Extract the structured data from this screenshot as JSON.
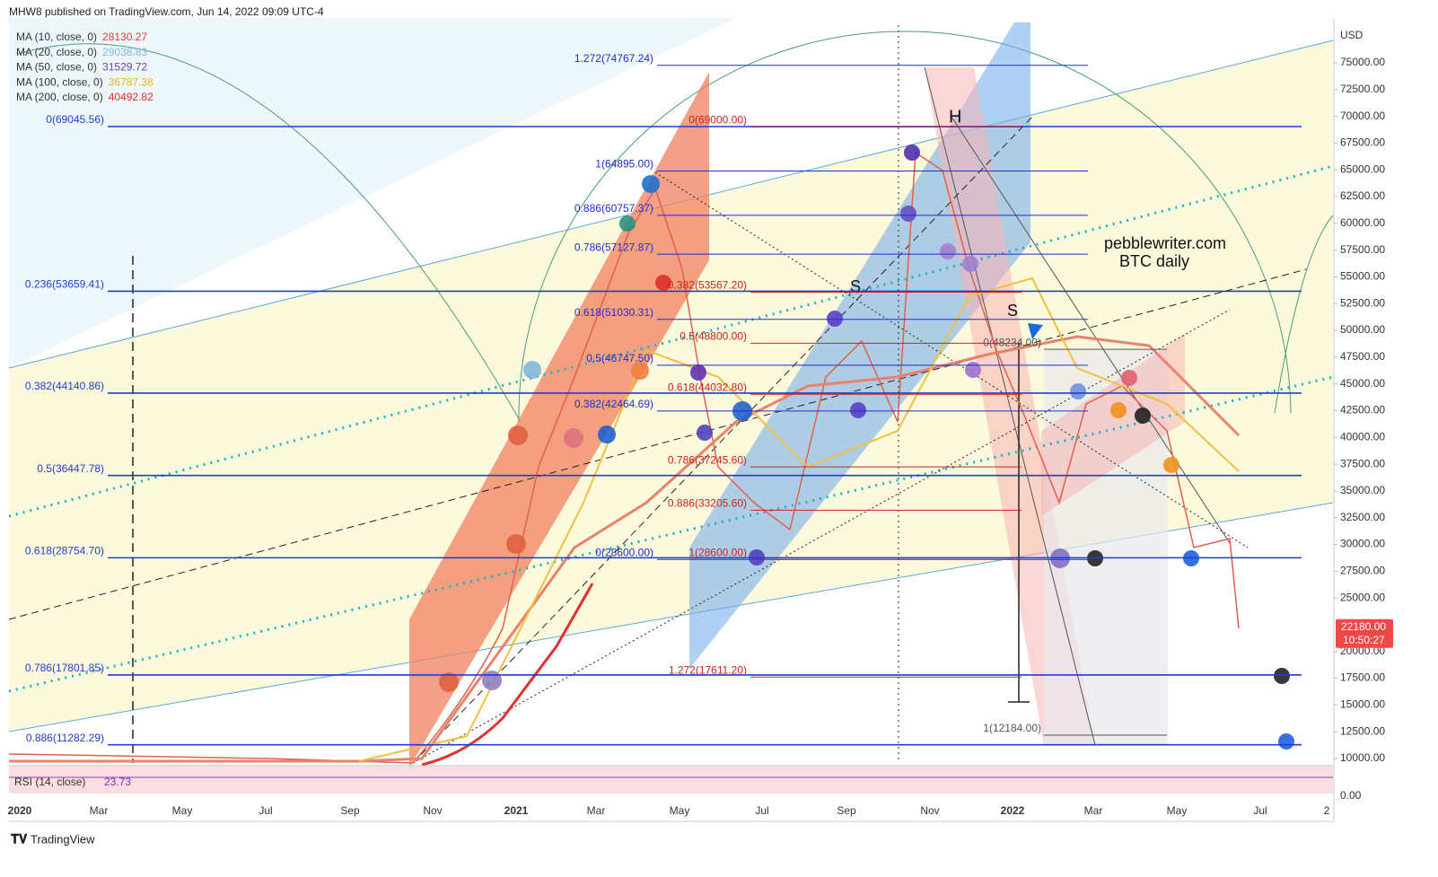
{
  "header": {
    "publisher": "MHW8 published on TradingView.com, Jun 14, 2022 09:09 UTC-4"
  },
  "legend": [
    {
      "label": "MA (10, close, 0)",
      "value": "28130.27",
      "color": "#e0403a"
    },
    {
      "label": "MA (20, close, 0)",
      "value": "29038.83",
      "color": "#7fb6e6"
    },
    {
      "label": "MA (50, close, 0)",
      "value": "31529.72",
      "color": "#6a3fb5"
    },
    {
      "label": "MA (100, close, 0)",
      "value": "36787.38",
      "color": "#f0b020"
    },
    {
      "label": "MA (200, close, 0)",
      "value": "40492.82",
      "color": "#e0302a"
    }
  ],
  "price_axis": {
    "unit": "USD",
    "ticks": [
      {
        "value": 75000,
        "label": "75000.00"
      },
      {
        "value": 72500,
        "label": "72500.00"
      },
      {
        "value": 70000,
        "label": "70000.00"
      },
      {
        "value": 67500,
        "label": "67500.00"
      },
      {
        "value": 65000,
        "label": "65000.00"
      },
      {
        "value": 62500,
        "label": "62500.00"
      },
      {
        "value": 60000,
        "label": "60000.00"
      },
      {
        "value": 57500,
        "label": "57500.00"
      },
      {
        "value": 55000,
        "label": "55000.00"
      },
      {
        "value": 52500,
        "label": "52500.00"
      },
      {
        "value": 50000,
        "label": "50000.00"
      },
      {
        "value": 47500,
        "label": "47500.00"
      },
      {
        "value": 45000,
        "label": "45000.00"
      },
      {
        "value": 42500,
        "label": "42500.00"
      },
      {
        "value": 40000,
        "label": "40000.00"
      },
      {
        "value": 37500,
        "label": "37500.00"
      },
      {
        "value": 35000,
        "label": "35000.00"
      },
      {
        "value": 32500,
        "label": "32500.00"
      },
      {
        "value": 30000,
        "label": "30000.00"
      },
      {
        "value": 27500,
        "label": "27500.00"
      },
      {
        "value": 25000,
        "label": "25000.00"
      },
      {
        "value": 20000,
        "label": "20000.00"
      },
      {
        "value": 17500,
        "label": "17500.00"
      },
      {
        "value": 15000,
        "label": "15000.00"
      },
      {
        "value": 12500,
        "label": "12500.00"
      },
      {
        "value": 10000,
        "label": "10000.00"
      }
    ],
    "rsi_tick": "0.00",
    "last_price": {
      "value": 22180,
      "label": "22180.00",
      "countdown": "10:50:27"
    }
  },
  "time_axis": [
    "2020",
    "Mar",
    "May",
    "Jul",
    "Sep",
    "Nov",
    "2021",
    "Mar",
    "May",
    "Jul",
    "Sep",
    "Nov",
    "2022",
    "Mar",
    "May",
    "Jul",
    "2"
  ],
  "fib_sets": [
    {
      "color": "#1c3fd0",
      "levels": [
        {
          "label": "0(69045.56)",
          "value": 69045.56
        },
        {
          "label": "0.236(53659.41)",
          "value": 53659.41
        },
        {
          "label": "0.382(44140.86)",
          "value": 44140.86
        },
        {
          "label": "0.5(36447.78)",
          "value": 36447.78
        },
        {
          "label": "0.618(28754.70)",
          "value": 28754.7
        },
        {
          "label": "0.786(17801.85)",
          "value": 17801.85
        },
        {
          "label": "0.886(11282.29)",
          "value": 11282.29
        }
      ]
    },
    {
      "color": "#1c2fd0",
      "levels": [
        {
          "label": "1.272(74767.24)",
          "value": 74767.24
        },
        {
          "label": "1(64895.00)",
          "value": 64895.0
        },
        {
          "label": "0.886(60757.37)",
          "value": 60757.37
        },
        {
          "label": "0.786(57127.87)",
          "value": 57127.87
        },
        {
          "label": "0.618(51030.31)",
          "value": 51030.31
        },
        {
          "label": "0.5(46747.50)",
          "value": 46747.5
        },
        {
          "label": "0.382(42464.69)",
          "value": 42464.69
        },
        {
          "label": "0(28600.00)",
          "value": 28600.0
        }
      ]
    },
    {
      "color": "#d02020",
      "levels": [
        {
          "label": "0(69000.00)",
          "value": 69000.0
        },
        {
          "label": "0.382(53567.20)",
          "value": 53567.2
        },
        {
          "label": "0.5(48800.00)",
          "value": 48800.0
        },
        {
          "label": "0.618(44032.80)",
          "value": 44032.8
        },
        {
          "label": "0.786(37245.60)",
          "value": 37245.6
        },
        {
          "label": "0.886(33205.60)",
          "value": 33205.6
        },
        {
          "label": "1(28600.00)",
          "value": 28600.0
        },
        {
          "label": "1.272(17611.20)",
          "value": 17611.2
        }
      ]
    },
    {
      "color": "#555555",
      "levels": [
        {
          "label": "0(48234.00)",
          "value": 48234.0
        },
        {
          "label": "1(12184.00)",
          "value": 12184.0
        }
      ]
    }
  ],
  "annotations": {
    "head": "H",
    "shoulder_left": "S",
    "shoulder_right": "S",
    "site": "pebblewriter.com",
    "chart_name": "BTC daily",
    "rsi": "RSI (14, close)",
    "rsi_value": "23.73"
  },
  "footer": {
    "brand": "TradingView"
  }
}
